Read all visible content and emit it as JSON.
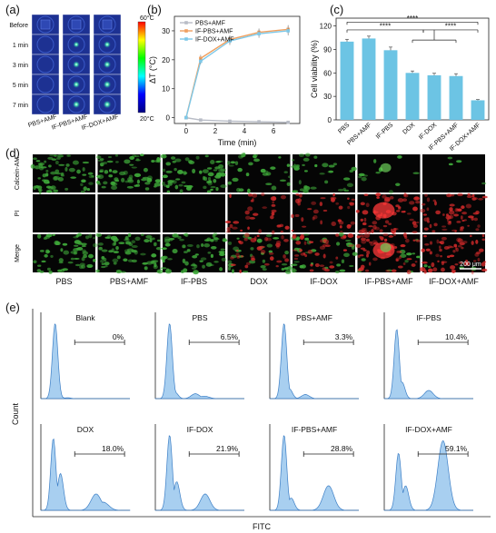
{
  "panel_a": {
    "label": "(a)",
    "rows": [
      "Before",
      "1 min",
      "3 min",
      "5 min",
      "7 min"
    ],
    "columns": [
      "PBS+AMF",
      "IF-PBS+AMF",
      "IF-DOX+AMF"
    ],
    "colorbar": {
      "max": "60°C",
      "min": "20°C",
      "colors": [
        "#ff0000",
        "#ffff00",
        "#00ff00",
        "#00ffff",
        "#0000ff",
        "#000080"
      ]
    },
    "spot_intensity": [
      [
        0,
        0,
        0
      ],
      [
        0,
        0.5,
        0.6
      ],
      [
        0,
        0.6,
        0.7
      ],
      [
        0,
        0.65,
        0.75
      ],
      [
        0,
        0.7,
        0.8
      ]
    ]
  },
  "panel_b": {
    "label": "(b)"
  },
  "panel_c": {
    "label": "(c)",
    "significance": [
      "****",
      "****",
      "****",
      "****"
    ]
  },
  "panel_d": {
    "label": "(d)",
    "rows": [
      "Calcein-AM",
      "PI",
      "Merge"
    ],
    "columns": [
      "PBS",
      "PBS+AMF",
      "IF-PBS",
      "DOX",
      "IF-DOX",
      "IF-PBS+AMF",
      "IF-DOX+AMF"
    ],
    "scale_bar": "200 μm",
    "green_level": [
      0.9,
      0.9,
      0.9,
      0.45,
      0.5,
      0.15,
      0.05
    ],
    "red_level": [
      0,
      0,
      0,
      0.5,
      0.55,
      0.9,
      0.9
    ]
  },
  "panel_e": {
    "label": "(e)",
    "ylabel": "Count",
    "xlabel": "FITC",
    "histograms": [
      {
        "name": "Blank",
        "pct": "0%"
      },
      {
        "name": "PBS",
        "pct": "6.5%"
      },
      {
        "name": "PBS+AMF",
        "pct": "3.3%"
      },
      {
        "name": "IF-PBS",
        "pct": "10.4%"
      },
      {
        "name": "DOX",
        "pct": "18.0%"
      },
      {
        "name": "IF-DOX",
        "pct": "21.9%"
      },
      {
        "name": "IF-PBS+AMF",
        "pct": "28.8%"
      },
      {
        "name": "IF-DOX+AMF",
        "pct": "59.1%"
      }
    ]
  },
  "chart_data": [
    {
      "type": "line",
      "title": "",
      "xlabel": "Time (min)",
      "ylabel": "ΔT (°C)",
      "xlim": [
        -0.8,
        7.8
      ],
      "ylim": [
        -2,
        35
      ],
      "xticks": [
        0,
        2,
        4,
        6,
        8
      ],
      "yticks": [
        0,
        10,
        20,
        30
      ],
      "legend_position": "top-left",
      "series": [
        {
          "name": "PBS+AMF",
          "color": "#b8bcc6",
          "x": [
            0,
            1,
            3,
            5,
            7
          ],
          "y": [
            0.0,
            -0.8,
            -1.2,
            -1.4,
            -1.6
          ],
          "err": [
            0.2,
            0.2,
            0.2,
            0.2,
            0.2
          ]
        },
        {
          "name": "IF-PBS+AMF",
          "color": "#f0a060",
          "x": [
            0,
            1,
            3,
            5,
            7
          ],
          "y": [
            0.0,
            20.5,
            27.0,
            29.5,
            30.5
          ],
          "err": [
            0.3,
            1.2,
            1.5,
            1.3,
            1.5
          ]
        },
        {
          "name": "IF-DOX+AMF",
          "color": "#7ec8e8",
          "x": [
            0,
            1,
            3,
            5,
            7
          ],
          "y": [
            0.0,
            19.5,
            26.5,
            29.0,
            30.0
          ],
          "err": [
            0.3,
            1.0,
            1.4,
            1.4,
            1.6
          ]
        }
      ]
    },
    {
      "type": "bar",
      "title": "",
      "xlabel": "",
      "ylabel": "Cell viability (%)",
      "ylim": [
        0,
        130
      ],
      "yticks": [
        0,
        30,
        60,
        90,
        120
      ],
      "color": "#6cc4e4",
      "categories": [
        "PBS",
        "PBS+AMF",
        "IF-PBS",
        "DOX",
        "IF-DOX",
        "IF-PBS+AMF",
        "IF-DOX+AMF"
      ],
      "values": [
        100,
        104,
        89,
        60,
        57,
        56,
        25
      ],
      "err": [
        3,
        3,
        4,
        2.5,
        2.5,
        3,
        1
      ]
    }
  ]
}
